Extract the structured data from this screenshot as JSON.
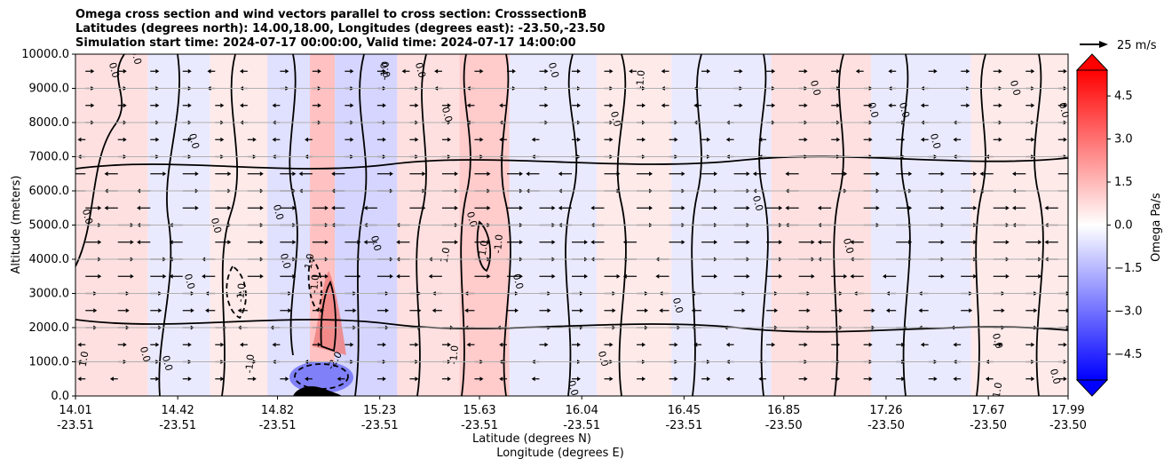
{
  "title_lines": [
    "Omega cross section and wind vectors parallel to cross section: CrosssectionB",
    "Latitudes (degrees north): 14.00,18.00, Longitudes (degrees east): -23.50,-23.50",
    "Simulation start time: 2024-07-17 00:00:00, Valid time: 2024-07-17 14:00:00"
  ],
  "chart_data": {
    "type": "heatmap",
    "title": "Omega cross section and wind vectors parallel to cross section: CrosssectionB",
    "ylabel": "Altitude (meters)",
    "xlabel_lines": [
      "Latitude (degrees N)",
      "Longitude (degrees E)"
    ],
    "ylim": [
      0,
      10000
    ],
    "yticks": [
      "0.0",
      "1000.0",
      "2000.0",
      "3000.0",
      "4000.0",
      "5000.0",
      "6000.0",
      "7000.0",
      "8000.0",
      "9000.0",
      "10000.0"
    ],
    "xticks": [
      {
        "lat": "14.01",
        "lon": "-23.51",
        "v": 14.01
      },
      {
        "lat": "14.42",
        "lon": "-23.51",
        "v": 14.42
      },
      {
        "lat": "14.82",
        "lon": "-23.51",
        "v": 14.82
      },
      {
        "lat": "15.23",
        "lon": "-23.51",
        "v": 15.23
      },
      {
        "lat": "15.63",
        "lon": "-23.51",
        "v": 15.63
      },
      {
        "lat": "16.04",
        "lon": "-23.51",
        "v": 16.04
      },
      {
        "lat": "16.45",
        "lon": "-23.51",
        "v": 16.45
      },
      {
        "lat": "16.85",
        "lon": "-23.50",
        "v": 16.85
      },
      {
        "lat": "17.26",
        "lon": "-23.50",
        "v": 17.26
      },
      {
        "lat": "17.67",
        "lon": "-23.50",
        "v": 17.67
      },
      {
        "lat": "17.99",
        "lon": "-23.50",
        "v": 17.99
      }
    ],
    "xlim": [
      14.01,
      17.99
    ],
    "grid": "horizontal",
    "colorbar": {
      "label": "Omega Pa/s",
      "range": [
        -5.4,
        5.4
      ],
      "ticks": [
        "4.5",
        "3.0",
        "1.5",
        "0.0",
        "−1.5",
        "−3.0",
        "−4.5"
      ],
      "tick_values": [
        4.5,
        3.0,
        1.5,
        0.0,
        -1.5,
        -3.0,
        -4.5
      ],
      "low_color": "#0000ff",
      "mid_color": "#ffffff",
      "high_color": "#ff0000"
    },
    "reference_vector": "25 m/s",
    "contour_labels": [
      "0.0",
      "1.0",
      "-1.0",
      "-2.0"
    ],
    "omega_bands": [
      {
        "x": 14.01,
        "x2": 14.3,
        "value": 0.3
      },
      {
        "x": 14.3,
        "x2": 14.55,
        "value": -0.2
      },
      {
        "x": 14.55,
        "x2": 14.78,
        "value": 0.2
      },
      {
        "x": 14.78,
        "x2": 14.95,
        "value": -0.3
      },
      {
        "x": 14.95,
        "x2": 15.05,
        "value": 0.6
      },
      {
        "x": 15.05,
        "x2": 15.3,
        "value": -0.4
      },
      {
        "x": 15.3,
        "x2": 15.55,
        "value": 0.3
      },
      {
        "x": 15.55,
        "x2": 15.75,
        "value": 0.5
      },
      {
        "x": 15.75,
        "x2": 16.1,
        "value": -0.2
      },
      {
        "x": 16.1,
        "x2": 16.4,
        "value": 0.2
      },
      {
        "x": 16.4,
        "x2": 16.8,
        "value": -0.2
      },
      {
        "x": 16.8,
        "x2": 17.2,
        "value": 0.3
      },
      {
        "x": 17.2,
        "x2": 17.6,
        "value": -0.2
      },
      {
        "x": 17.6,
        "x2": 17.99,
        "value": 0.2
      }
    ]
  }
}
